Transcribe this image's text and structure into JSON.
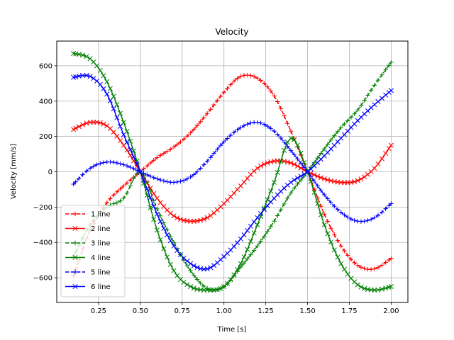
{
  "chart_data": {
    "type": "line",
    "title": "Velocity",
    "xlabel": "Time [s]",
    "ylabel": "Velocity [mm/s]",
    "xlim": [
      0.0,
      2.1
    ],
    "ylim": [
      -740,
      740
    ],
    "xticks": [
      0.25,
      0.5,
      0.75,
      1.0,
      1.25,
      1.5,
      1.75,
      2.0
    ],
    "xtick_labels": [
      "0.25",
      "0.50",
      "0.75",
      "1.00",
      "1.25",
      "1.50",
      "1.75",
      "2.00"
    ],
    "yticks": [
      -600,
      -400,
      -200,
      0,
      200,
      400,
      600
    ],
    "ytick_labels": [
      "−600",
      "−400",
      "−200",
      "0",
      "200",
      "400",
      "600"
    ],
    "grid": true,
    "legend_position": "lower-left",
    "series": [
      {
        "name": "1 line",
        "color": "#ff0000",
        "linestyle": "dashed",
        "marker": "plus",
        "x": [
          0.1,
          0.2,
          0.3,
          0.4,
          0.5,
          0.6,
          0.7,
          0.8,
          0.9,
          1.0,
          1.1,
          1.2,
          1.3,
          1.4,
          1.5,
          1.6,
          1.7,
          1.8,
          1.9,
          2.0
        ],
        "y": [
          -590,
          -330,
          -175,
          -80,
          0,
          80,
          140,
          220,
          330,
          450,
          540,
          530,
          430,
          230,
          0,
          -240,
          -420,
          -530,
          -550,
          -490
        ]
      },
      {
        "name": "2 line",
        "color": "#ff0000",
        "linestyle": "solid",
        "marker": "x",
        "x": [
          0.1,
          0.2,
          0.3,
          0.4,
          0.5,
          0.6,
          0.7,
          0.8,
          0.9,
          1.0,
          1.1,
          1.2,
          1.3,
          1.4,
          1.5,
          1.6,
          1.7,
          1.8,
          1.9,
          2.0
        ],
        "y": [
          240,
          280,
          260,
          150,
          0,
          -150,
          -250,
          -280,
          -260,
          -180,
          -80,
          20,
          60,
          50,
          0,
          -40,
          -60,
          -50,
          20,
          150
        ]
      },
      {
        "name": "3 line",
        "color": "#008000",
        "linestyle": "dashed",
        "marker": "plus",
        "x": [
          0.1,
          0.2,
          0.3,
          0.4,
          0.5,
          0.6,
          0.7,
          0.8,
          0.9,
          1.0,
          1.1,
          1.2,
          1.3,
          1.4,
          1.5,
          1.6,
          1.7,
          1.8,
          1.9,
          2.0
        ],
        "y": [
          -480,
          -300,
          -200,
          -150,
          0,
          -210,
          -400,
          -560,
          -660,
          -650,
          -540,
          -420,
          -280,
          -120,
          0,
          130,
          250,
          350,
          490,
          620
        ]
      },
      {
        "name": "4 line",
        "color": "#008000",
        "linestyle": "solid",
        "marker": "x",
        "x": [
          0.1,
          0.2,
          0.3,
          0.4,
          0.5,
          0.6,
          0.7,
          0.8,
          0.9,
          1.0,
          1.1,
          1.2,
          1.3,
          1.4,
          1.5,
          1.6,
          1.7,
          1.8,
          1.9,
          2.0
        ],
        "y": [
          670,
          640,
          510,
          280,
          0,
          -330,
          -560,
          -650,
          -670,
          -650,
          -520,
          -300,
          -60,
          190,
          0,
          -300,
          -520,
          -640,
          -670,
          -650
        ]
      },
      {
        "name": "5 line",
        "color": "#0000ff",
        "linestyle": "dashed",
        "marker": "plus",
        "x": [
          0.1,
          0.2,
          0.3,
          0.4,
          0.5,
          0.6,
          0.7,
          0.8,
          0.9,
          1.0,
          1.1,
          1.2,
          1.3,
          1.4,
          1.5,
          1.6,
          1.7,
          1.8,
          1.9,
          2.0
        ],
        "y": [
          -70,
          20,
          55,
          40,
          0,
          -40,
          -60,
          -30,
          60,
          170,
          250,
          280,
          230,
          120,
          0,
          -130,
          -230,
          -280,
          -260,
          -180
        ]
      },
      {
        "name": "6 line",
        "color": "#0000ff",
        "linestyle": "solid",
        "marker": "x",
        "x": [
          0.1,
          0.2,
          0.3,
          0.4,
          0.5,
          0.6,
          0.7,
          0.8,
          0.9,
          1.0,
          1.1,
          1.2,
          1.3,
          1.4,
          1.5,
          1.6,
          1.7,
          1.8,
          1.9,
          2.0
        ],
        "y": [
          535,
          540,
          440,
          210,
          0,
          -240,
          -420,
          -520,
          -550,
          -480,
          -380,
          -260,
          -150,
          -60,
          0,
          90,
          190,
          290,
          380,
          460
        ]
      }
    ]
  }
}
